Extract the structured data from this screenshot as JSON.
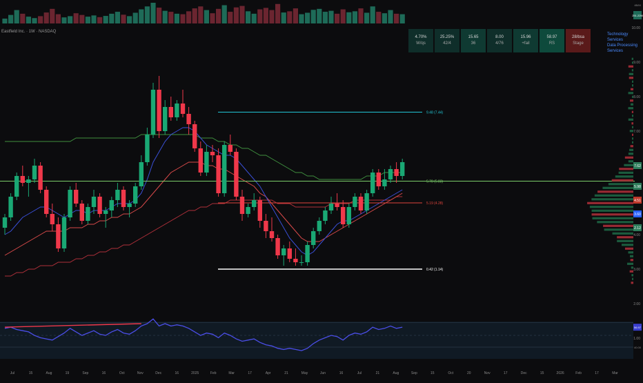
{
  "header": {
    "title": "Eastfield Inc. · 1W · NASDAQ"
  },
  "stats": [
    {
      "value": "4.70%",
      "label": "W/qs",
      "color": "#0f2e2a"
    },
    {
      "value": "25.25%",
      "label": "42/4",
      "color": "#0f2e2a"
    },
    {
      "value": "15.65",
      "label": "36",
      "color": "#0f3a32"
    },
    {
      "value": "8.00",
      "label": "4/76",
      "color": "#0f2e2a"
    },
    {
      "value": "15.96",
      "label": "+fail",
      "color": "#0f3a32"
    },
    {
      "value": "58.97",
      "label": "RS",
      "color": "#0e4a3c"
    },
    {
      "value": "28/bsa",
      "label": "Stage",
      "color": "#5a1a1a"
    }
  ],
  "sector": {
    "line1": "Technology Services",
    "line2": "Data Processing Services"
  },
  "price_axis": {
    "ticks": [
      "10.00",
      "9.00",
      "8.00",
      "7.00",
      "6.00",
      "5.00",
      "4.00",
      "3.00",
      "2.00",
      "1.00"
    ],
    "labels": [
      {
        "text": "7.62",
        "color": "#2e7d5b",
        "value": 6.0
      },
      {
        "text": "5.98",
        "color": "#2e7d5b",
        "value": 5.4
      },
      {
        "text": "4.51",
        "color": "#c0392b",
        "value": 5.0
      },
      {
        "text": "3.60",
        "color": "#2962ff",
        "value": 4.6
      },
      {
        "text": "2.12",
        "color": "#2e7d5b",
        "value": 4.2
      }
    ]
  },
  "levels": [
    {
      "label": "9.48 (7.44)",
      "value": 7.55,
      "color": "#22c7d6"
    },
    {
      "label": "5.78 (5.83)",
      "value": 5.55,
      "color": "#7ccf6a"
    },
    {
      "label": "5.19 (4.28)",
      "value": 4.92,
      "color": "#e0453c"
    },
    {
      "label": "0.42 (1.14)",
      "value": 3.0,
      "color": "#ffffff"
    }
  ],
  "volume_axis": {
    "label_top": "4B/M",
    "label_value": "251.22M"
  },
  "rsi_axis": {
    "value_label": "56.97",
    "bottom_label": "40.00"
  },
  "x_axis": {
    "ticks": [
      "Jul",
      "15",
      "Aug",
      "19",
      "Sep",
      "16",
      "Oct",
      "Nov",
      "Dec",
      "16",
      "2025",
      "Feb",
      "Mar",
      "17",
      "Apr",
      "21",
      "May",
      "Jun",
      "16",
      "Jul",
      "21",
      "Aug",
      "Sep",
      "15",
      "Oct",
      "20",
      "Nov",
      "17",
      "Dec",
      "15",
      "2026",
      "Feb",
      "17",
      "Mar"
    ]
  },
  "chart_data": {
    "type": "candlestick",
    "y_range": [
      2.0,
      10.0
    ],
    "candles": [
      [
        4.2,
        4.6,
        4.0,
        4.5
      ],
      [
        4.5,
        5.2,
        4.4,
        5.1
      ],
      [
        5.1,
        5.8,
        5.0,
        5.7
      ],
      [
        5.7,
        6.0,
        5.4,
        5.5
      ],
      [
        5.5,
        5.7,
        5.1,
        5.6
      ],
      [
        5.6,
        6.2,
        5.5,
        6.0
      ],
      [
        6.0,
        6.1,
        5.2,
        5.3
      ],
      [
        5.3,
        5.4,
        4.5,
        4.6
      ],
      [
        4.6,
        4.9,
        4.1,
        4.3
      ],
      [
        4.3,
        4.5,
        3.5,
        3.6
      ],
      [
        3.6,
        4.6,
        3.5,
        4.5
      ],
      [
        4.5,
        5.4,
        4.4,
        5.3
      ],
      [
        5.3,
        5.5,
        4.8,
        4.9
      ],
      [
        4.9,
        5.0,
        4.3,
        4.4
      ],
      [
        4.4,
        4.9,
        4.3,
        4.8
      ],
      [
        4.8,
        5.3,
        4.6,
        5.1
      ],
      [
        5.1,
        5.2,
        4.5,
        4.6
      ],
      [
        4.6,
        4.8,
        4.2,
        4.7
      ],
      [
        4.7,
        5.1,
        4.5,
        5.0
      ],
      [
        5.0,
        5.5,
        4.8,
        5.3
      ],
      [
        5.3,
        5.4,
        4.7,
        4.8
      ],
      [
        4.8,
        5.0,
        4.5,
        4.9
      ],
      [
        4.9,
        5.5,
        4.8,
        5.4
      ],
      [
        5.4,
        6.3,
        5.3,
        6.1
      ],
      [
        6.1,
        7.1,
        6.0,
        6.9
      ],
      [
        6.9,
        8.4,
        6.8,
        8.2
      ],
      [
        8.2,
        8.6,
        6.8,
        7.0
      ],
      [
        7.0,
        7.9,
        6.9,
        7.7
      ],
      [
        7.7,
        8.0,
        7.3,
        7.4
      ],
      [
        7.4,
        7.9,
        7.3,
        7.8
      ],
      [
        7.8,
        8.2,
        7.4,
        7.5
      ],
      [
        7.5,
        7.7,
        6.9,
        7.2
      ],
      [
        7.2,
        7.3,
        6.4,
        6.5
      ],
      [
        6.5,
        6.7,
        5.7,
        5.8
      ],
      [
        5.8,
        6.6,
        5.7,
        6.4
      ],
      [
        6.4,
        6.6,
        6.1,
        6.3
      ],
      [
        6.3,
        6.5,
        5.1,
        5.2
      ],
      [
        5.2,
        6.7,
        5.1,
        6.6
      ],
      [
        6.6,
        6.9,
        6.3,
        6.4
      ],
      [
        6.4,
        6.5,
        5.0,
        5.1
      ],
      [
        5.1,
        5.3,
        4.4,
        4.6
      ],
      [
        4.6,
        4.9,
        4.5,
        4.8
      ],
      [
        4.8,
        5.2,
        4.7,
        5.0
      ],
      [
        5.0,
        5.1,
        4.2,
        4.4
      ],
      [
        4.4,
        4.6,
        3.9,
        4.1
      ],
      [
        4.1,
        4.5,
        3.8,
        3.9
      ],
      [
        3.9,
        4.0,
        3.3,
        3.4
      ],
      [
        3.4,
        3.7,
        3.1,
        3.6
      ],
      [
        3.6,
        3.8,
        3.2,
        3.3
      ],
      [
        3.3,
        3.6,
        3.1,
        3.2
      ],
      [
        3.2,
        3.4,
        3.1,
        3.2
      ],
      [
        3.2,
        3.8,
        3.1,
        3.7
      ],
      [
        3.7,
        4.2,
        3.6,
        4.1
      ],
      [
        4.1,
        4.5,
        4.0,
        4.4
      ],
      [
        4.4,
        4.8,
        4.3,
        4.7
      ],
      [
        4.7,
        5.1,
        4.6,
        4.9
      ],
      [
        4.9,
        5.2,
        4.7,
        4.8
      ],
      [
        4.8,
        5.0,
        4.2,
        4.3
      ],
      [
        4.3,
        4.9,
        4.2,
        4.8
      ],
      [
        4.8,
        5.2,
        4.7,
        5.1
      ],
      [
        5.1,
        5.2,
        4.6,
        4.7
      ],
      [
        4.7,
        5.3,
        4.6,
        5.2
      ],
      [
        5.2,
        5.9,
        5.1,
        5.8
      ],
      [
        5.8,
        5.9,
        5.3,
        5.4
      ],
      [
        5.4,
        5.9,
        5.3,
        5.6
      ],
      [
        5.6,
        6.0,
        5.5,
        5.9
      ],
      [
        5.9,
        6.1,
        5.5,
        5.7
      ],
      [
        5.7,
        6.2,
        5.6,
        6.1
      ]
    ],
    "ma_blue": [
      4.0,
      4.1,
      4.3,
      4.5,
      4.6,
      4.7,
      4.8,
      4.8,
      4.7,
      4.6,
      4.5,
      4.6,
      4.7,
      4.7,
      4.6,
      4.7,
      4.7,
      4.7,
      4.8,
      4.9,
      4.9,
      4.9,
      5.0,
      5.2,
      5.6,
      6.1,
      6.4,
      6.7,
      6.9,
      7.0,
      7.1,
      7.1,
      7.0,
      6.8,
      6.6,
      6.5,
      6.4,
      6.3,
      6.3,
      6.2,
      6.0,
      5.8,
      5.6,
      5.4,
      5.1,
      4.8,
      4.5,
      4.2,
      3.9,
      3.7,
      3.5,
      3.4,
      3.5,
      3.7,
      3.9,
      4.1,
      4.3,
      4.4,
      4.4,
      4.5,
      4.6,
      4.7,
      4.8,
      4.9,
      5.0,
      5.1,
      5.2,
      5.3
    ],
    "ma_red": [
      3.4,
      3.5,
      3.6,
      3.7,
      3.8,
      3.9,
      4.0,
      4.1,
      4.1,
      4.1,
      4.1,
      4.2,
      4.2,
      4.2,
      4.3,
      4.3,
      4.4,
      4.4,
      4.5,
      4.5,
      4.6,
      4.6,
      4.7,
      4.8,
      5.0,
      5.2,
      5.4,
      5.6,
      5.8,
      5.9,
      6.0,
      6.1,
      6.1,
      6.1,
      6.0,
      6.0,
      5.9,
      5.9,
      5.8,
      5.7,
      5.6,
      5.5,
      5.4,
      5.2,
      5.1,
      4.9,
      4.7,
      4.5,
      4.3,
      4.1,
      3.9,
      3.8,
      3.8,
      3.8,
      3.9,
      4.0,
      4.1,
      4.2,
      4.3,
      4.4,
      4.5,
      4.6,
      4.7,
      4.8,
      4.9,
      5.0,
      5.1,
      5.2
    ],
    "ma_green": [
      6.7,
      6.7,
      6.7,
      6.7,
      6.7,
      6.7,
      6.7,
      6.7,
      6.7,
      6.7,
      6.7,
      6.7,
      6.8,
      6.8,
      6.8,
      6.8,
      6.8,
      6.8,
      6.8,
      6.8,
      6.8,
      6.8,
      6.8,
      6.9,
      6.9,
      6.9,
      6.9,
      6.9,
      6.9,
      6.9,
      6.9,
      6.9,
      6.9,
      6.8,
      6.8,
      6.8,
      6.7,
      6.7,
      6.6,
      6.6,
      6.5,
      6.5,
      6.4,
      6.3,
      6.3,
      6.2,
      6.1,
      6.0,
      5.9,
      5.8,
      5.8,
      5.7,
      5.7,
      5.6,
      5.6,
      5.6,
      5.6,
      5.6,
      5.6,
      5.6,
      5.6,
      5.7,
      5.7,
      5.7,
      5.8,
      5.8,
      5.8,
      5.8
    ],
    "ma_darkred": [
      2.8,
      2.8,
      2.9,
      2.9,
      3.0,
      3.0,
      3.1,
      3.1,
      3.1,
      3.2,
      3.2,
      3.2,
      3.3,
      3.3,
      3.4,
      3.4,
      3.5,
      3.5,
      3.6,
      3.6,
      3.7,
      3.7,
      3.8,
      3.9,
      4.0,
      4.1,
      4.2,
      4.3,
      4.4,
      4.5,
      4.6,
      4.7,
      4.7,
      4.8,
      4.8,
      4.9,
      4.9,
      4.9,
      5.0,
      5.0,
      5.0,
      5.0,
      5.0,
      5.0,
      5.0,
      5.0,
      4.9,
      4.9,
      4.9,
      4.8,
      4.8,
      4.8,
      4.8,
      4.8,
      4.8,
      4.9,
      4.9,
      4.9,
      4.9,
      5.0,
      5.0,
      5.0,
      5.0,
      5.0,
      5.0,
      5.0,
      5.1,
      5.1
    ],
    "volume": [
      20,
      35,
      55,
      40,
      28,
      22,
      30,
      45,
      60,
      38,
      25,
      30,
      42,
      35,
      28,
      33,
      26,
      31,
      40,
      48,
      36,
      30,
      44,
      58,
      70,
      85,
      65,
      52,
      48,
      40,
      38,
      50,
      62,
      70,
      55,
      42,
      60,
      75,
      48,
      66,
      72,
      50,
      40,
      58,
      64,
      55,
      80,
      45,
      50,
      62,
      38,
      44,
      56,
      60,
      48,
      52,
      40,
      58,
      46,
      50,
      62,
      44,
      70,
      48,
      42,
      55,
      40,
      38
    ],
    "rsi": [
      56,
      57,
      55,
      54,
      53,
      50,
      48,
      47,
      46,
      49,
      52,
      56,
      53,
      50,
      52,
      54,
      51,
      50,
      53,
      55,
      52,
      51,
      54,
      58,
      60,
      64,
      58,
      60,
      58,
      59,
      58,
      56,
      53,
      50,
      52,
      51,
      48,
      52,
      50,
      47,
      45,
      46,
      47,
      44,
      42,
      41,
      39,
      38,
      39,
      38,
      37,
      39,
      43,
      46,
      48,
      50,
      49,
      46,
      50,
      52,
      51,
      53,
      57,
      55,
      56,
      58,
      56,
      57
    ],
    "bands": {
      "upper": 61,
      "mid": 50,
      "lower": 40
    }
  }
}
